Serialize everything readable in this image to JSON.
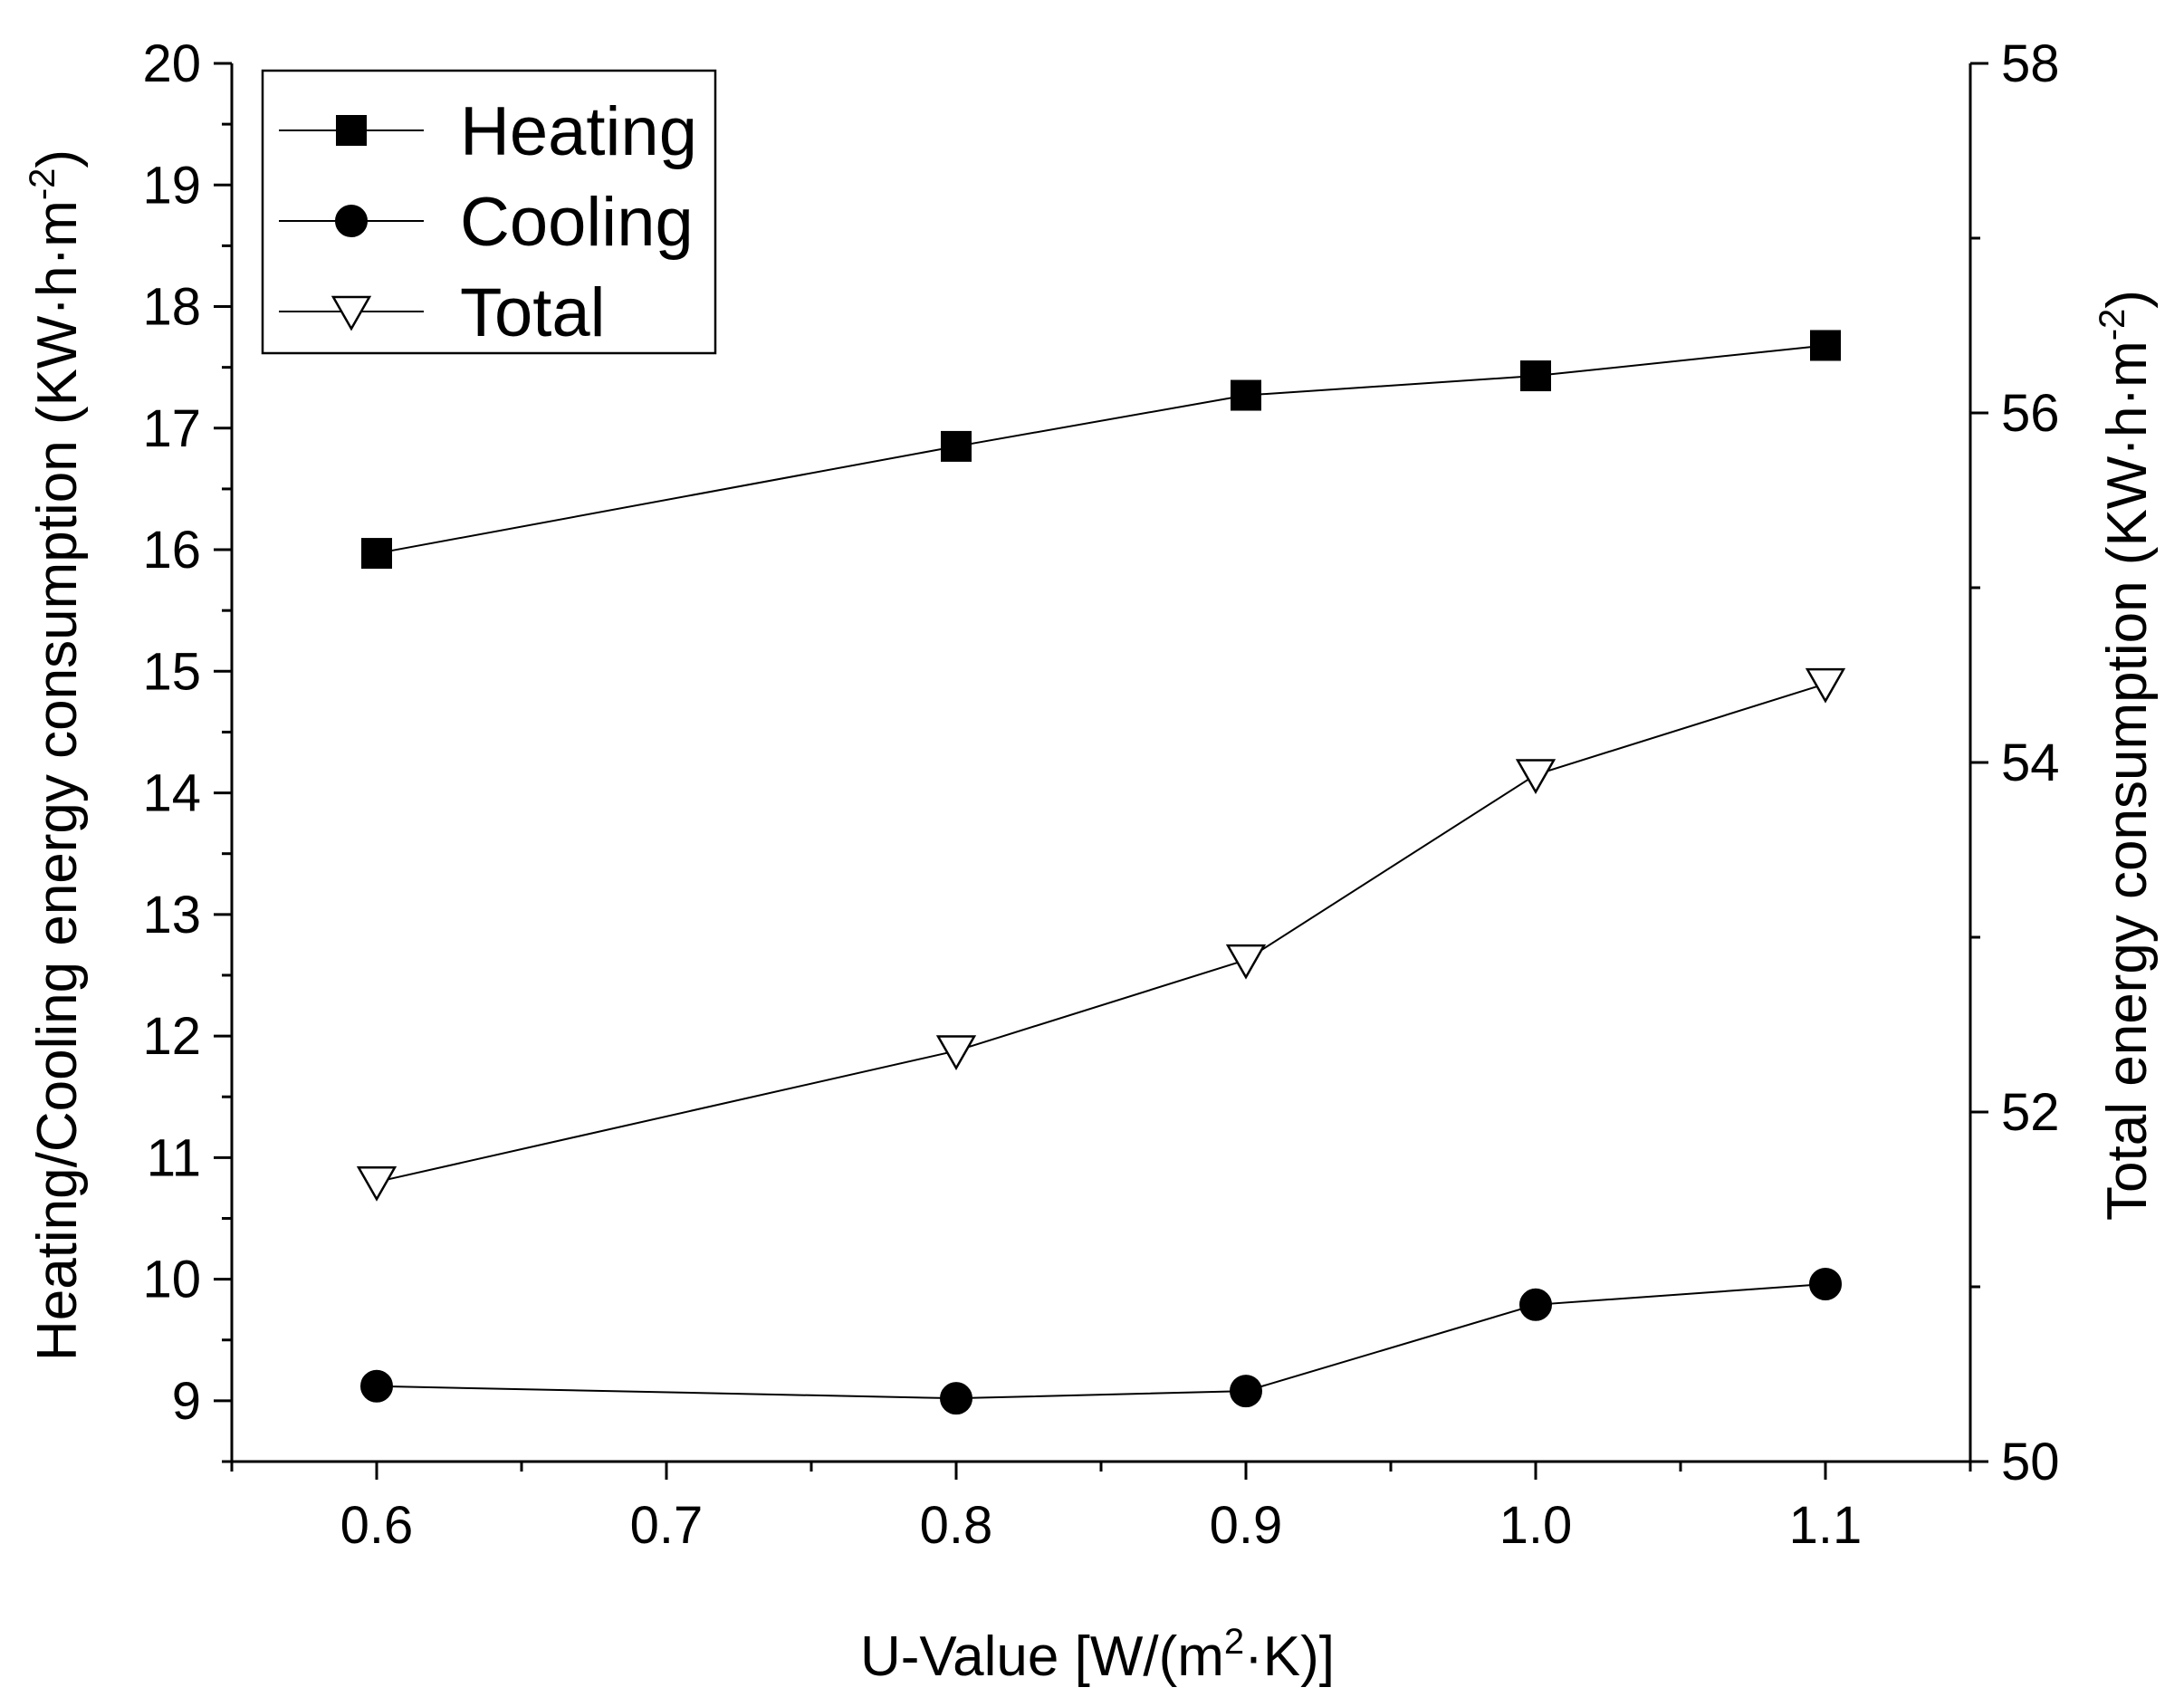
{
  "chart_data": {
    "type": "line",
    "x": [
      0.6,
      0.8,
      0.9,
      1.0,
      1.1
    ],
    "xlim": [
      0.55,
      1.15
    ],
    "x_ticks": [
      "0.6",
      "0.7",
      "0.8",
      "0.9",
      "1.0",
      "1.1"
    ],
    "x_tick_values": [
      0.6,
      0.7,
      0.8,
      0.9,
      1.0,
      1.1
    ],
    "xlabel": {
      "main": "U-Value [W/(m",
      "sup": "2",
      "tail": "·K)]"
    },
    "ylim_left": [
      8.5,
      20
    ],
    "y_ticks_left": [
      "9",
      "10",
      "11",
      "12",
      "13",
      "14",
      "15",
      "16",
      "17",
      "18",
      "19",
      "20"
    ],
    "y_tick_values_left": [
      9,
      10,
      11,
      12,
      13,
      14,
      15,
      16,
      17,
      18,
      19,
      20
    ],
    "ylabel_left": {
      "main": "Heating/Cooling energy consumption (KW·h·m",
      "sup": "-2",
      "tail": ")"
    },
    "ylim_right": [
      50,
      58
    ],
    "y_ticks_right": [
      "50",
      "52",
      "54",
      "56",
      "58"
    ],
    "y_tick_values_right": [
      50,
      52,
      54,
      56,
      58
    ],
    "ylabel_right": {
      "main": "Total energy consumption (KW·h·m",
      "sup": "-2",
      "tail": ")"
    },
    "series": [
      {
        "name": "Heating",
        "axis": "left",
        "marker": "square-filled",
        "values": [
          15.97,
          16.85,
          17.27,
          17.43,
          17.68
        ]
      },
      {
        "name": "Cooling",
        "axis": "left",
        "marker": "circle-filled",
        "values": [
          9.12,
          9.02,
          9.08,
          9.79,
          9.96
        ]
      },
      {
        "name": "Total",
        "axis": "right",
        "marker": "triangle-down-open",
        "values": [
          51.6,
          52.35,
          52.87,
          53.93,
          54.45
        ]
      }
    ],
    "legend": {
      "placement": "top-left"
    },
    "grid": false,
    "colors": {
      "line": "#000000",
      "marker": "#000000",
      "background": "#ffffff"
    }
  }
}
